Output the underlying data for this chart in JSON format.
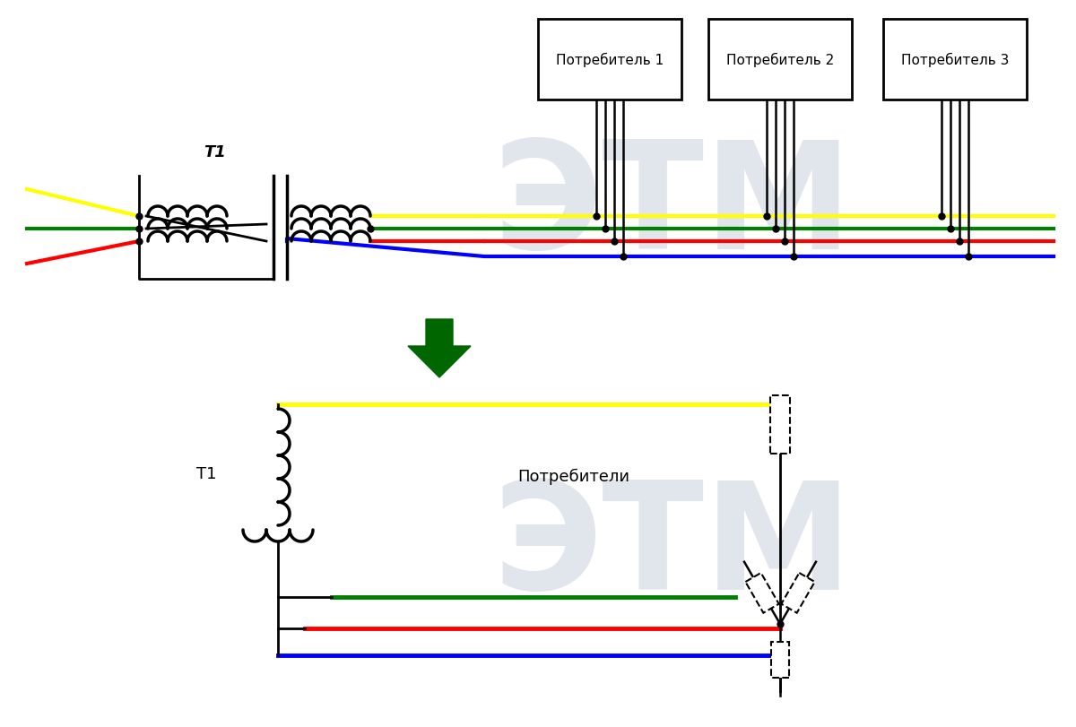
{
  "bg_color": "#ffffff",
  "watermark_color": "#cdd5e0",
  "wire_colors": {
    "yellow": "#ffff00",
    "green": "#008000",
    "red": "#ff0000",
    "blue": "#0000ff",
    "black": "#000000"
  },
  "consumers": [
    "Потребитель 1",
    "Потребитель 2",
    "Потребитель 3"
  ],
  "label_T1_top": "T1",
  "label_T1_bottom": "T1",
  "label_consumers_bottom": "Потребители",
  "arrow_color": "#006600",
  "figure_size": [
    12.0,
    8.12
  ],
  "dpi": 100
}
